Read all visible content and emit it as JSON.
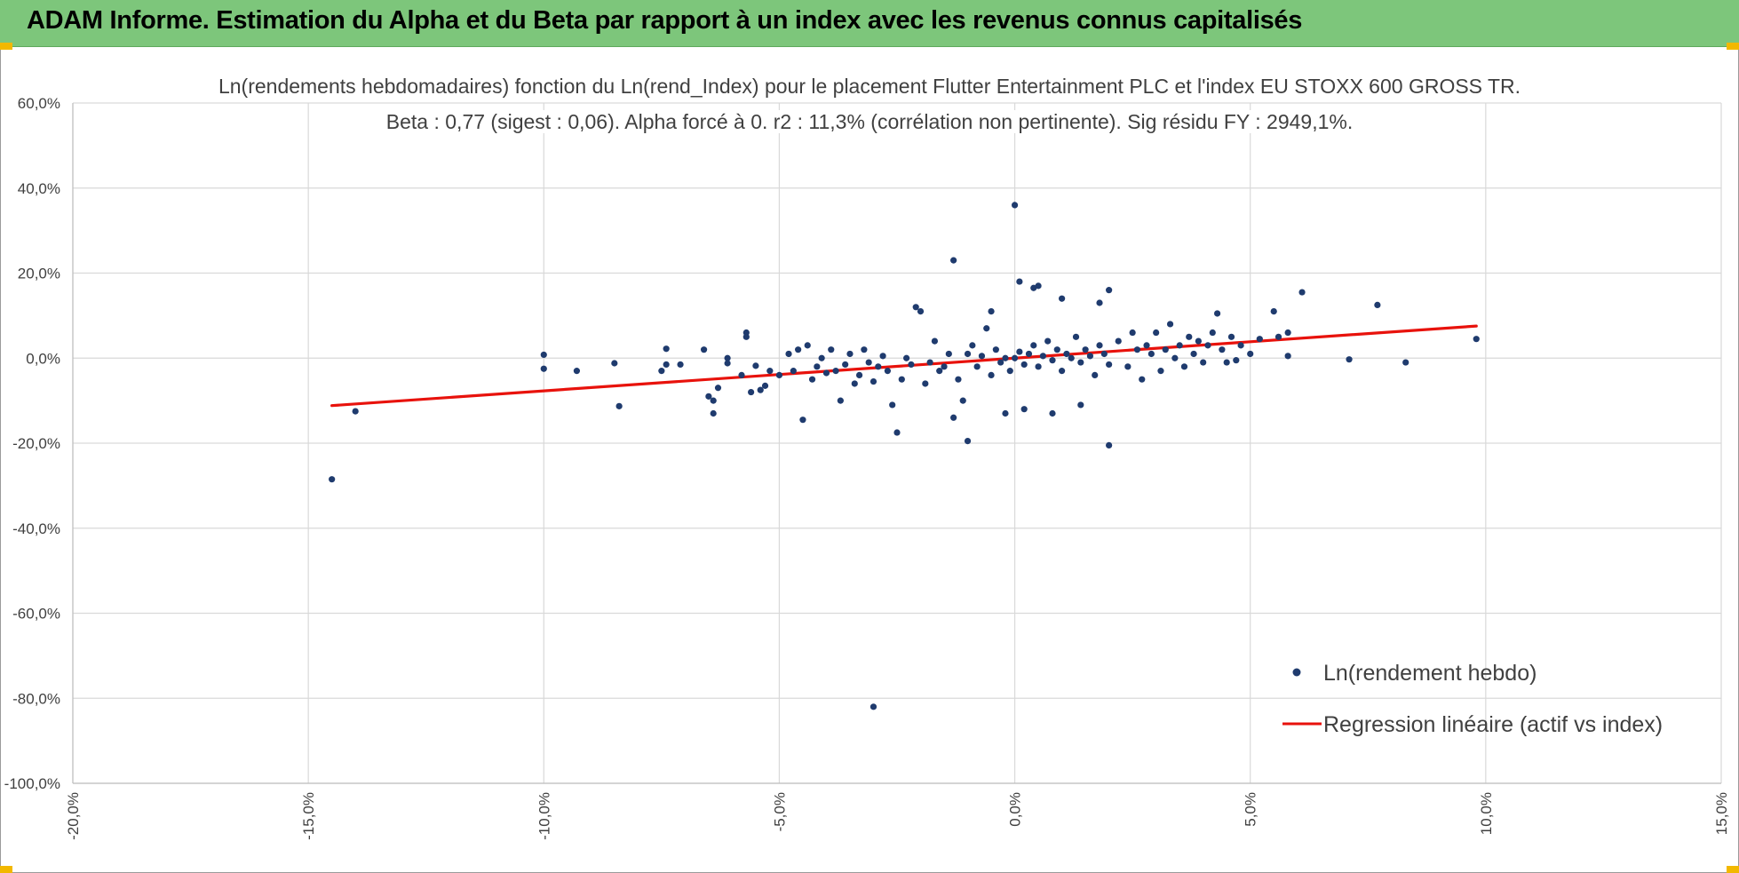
{
  "banner": {
    "title": "ADAM Informe. Estimation du Alpha et du Beta par rapport à un index avec les revenus connus capitalisés",
    "background": "#7dc67b"
  },
  "chart_data": {
    "type": "scatter",
    "title": "Ln(rendements hebdomadaires) fonction du Ln(rend_Index) pour le placement Flutter Entertainment PLC et l'index EU STOXX 600 GROSS TR.",
    "subtitle": "Beta : 0,77 (sigest : 0,06).  Alpha forcé à 0. r2 : 11,3% (corrélation non pertinente). Sig résidu FY : 2949,1%.",
    "xlabel": "",
    "ylabel": "",
    "xlim": [
      -0.2,
      0.15
    ],
    "ylim": [
      -1.0,
      0.6
    ],
    "x_ticks": [
      "-20,0%",
      "-15,0%",
      "-10,0%",
      "-5,0%",
      "0,0%",
      "5,0%",
      "10,0%",
      "15,0%"
    ],
    "y_ticks": [
      "60,0%",
      "40,0%",
      "20,0%",
      "0,0%",
      "-20,0%",
      "-40,0%",
      "-60,0%",
      "-80,0%",
      "-100,0%"
    ],
    "grid": true,
    "legend_position": "bottom-right",
    "series": [
      {
        "name": "Ln(rendement hebdo)",
        "kind": "scatter",
        "color": "#1f3b6e",
        "points": [
          [
            -0.145,
            -0.285
          ],
          [
            -0.14,
            -0.125
          ],
          [
            -0.1,
            0.008
          ],
          [
            -0.1,
            -0.025
          ],
          [
            -0.093,
            -0.03
          ],
          [
            -0.085,
            -0.012
          ],
          [
            -0.084,
            -0.113
          ],
          [
            -0.075,
            -0.03
          ],
          [
            -0.074,
            0.022
          ],
          [
            -0.074,
            -0.015
          ],
          [
            -0.071,
            -0.015
          ],
          [
            -0.066,
            0.02
          ],
          [
            -0.065,
            -0.09
          ],
          [
            -0.064,
            -0.1
          ],
          [
            -0.064,
            -0.13
          ],
          [
            -0.063,
            -0.07
          ],
          [
            -0.061,
            0.0
          ],
          [
            -0.061,
            -0.012
          ],
          [
            -0.058,
            -0.04
          ],
          [
            -0.057,
            0.06
          ],
          [
            -0.057,
            0.05
          ],
          [
            -0.056,
            -0.08
          ],
          [
            -0.055,
            -0.018
          ],
          [
            -0.054,
            -0.075
          ],
          [
            -0.053,
            -0.065
          ],
          [
            -0.052,
            -0.03
          ],
          [
            -0.05,
            -0.04
          ],
          [
            -0.048,
            0.01
          ],
          [
            -0.047,
            -0.03
          ],
          [
            -0.046,
            0.02
          ],
          [
            -0.045,
            -0.145
          ],
          [
            -0.044,
            0.03
          ],
          [
            -0.043,
            -0.05
          ],
          [
            -0.042,
            -0.02
          ],
          [
            -0.041,
            0.0
          ],
          [
            -0.04,
            -0.035
          ],
          [
            -0.039,
            0.02
          ],
          [
            -0.038,
            -0.03
          ],
          [
            -0.037,
            -0.1
          ],
          [
            -0.036,
            -0.015
          ],
          [
            -0.035,
            0.01
          ],
          [
            -0.034,
            -0.06
          ],
          [
            -0.033,
            -0.04
          ],
          [
            -0.032,
            0.02
          ],
          [
            -0.031,
            -0.01
          ],
          [
            -0.03,
            -0.055
          ],
          [
            -0.029,
            -0.02
          ],
          [
            -0.028,
            0.005
          ],
          [
            -0.027,
            -0.03
          ],
          [
            -0.026,
            -0.11
          ],
          [
            -0.025,
            -0.175
          ],
          [
            -0.024,
            -0.05
          ],
          [
            -0.023,
            0.0
          ],
          [
            -0.022,
            -0.015
          ],
          [
            -0.021,
            0.12
          ],
          [
            -0.02,
            0.11
          ],
          [
            -0.019,
            -0.06
          ],
          [
            -0.018,
            -0.01
          ],
          [
            -0.017,
            0.04
          ],
          [
            -0.016,
            -0.03
          ],
          [
            -0.015,
            -0.02
          ],
          [
            -0.014,
            0.01
          ],
          [
            -0.013,
            -0.14
          ],
          [
            -0.012,
            -0.05
          ],
          [
            -0.011,
            -0.1
          ],
          [
            -0.01,
            0.01
          ],
          [
            -0.009,
            0.03
          ],
          [
            -0.008,
            -0.02
          ],
          [
            -0.007,
            0.005
          ],
          [
            -0.006,
            0.07
          ],
          [
            -0.005,
            -0.04
          ],
          [
            -0.004,
            0.02
          ],
          [
            -0.003,
            -0.01
          ],
          [
            -0.002,
            0.0
          ],
          [
            -0.001,
            -0.03
          ],
          [
            0.0,
            0.0
          ],
          [
            0.001,
            0.015
          ],
          [
            0.002,
            -0.015
          ],
          [
            0.003,
            0.01
          ],
          [
            0.004,
            0.03
          ],
          [
            0.005,
            -0.02
          ],
          [
            0.006,
            0.005
          ],
          [
            0.007,
            0.04
          ],
          [
            0.008,
            -0.005
          ],
          [
            0.009,
            0.02
          ],
          [
            0.01,
            -0.03
          ],
          [
            0.011,
            0.01
          ],
          [
            0.012,
            0.0
          ],
          [
            0.013,
            0.05
          ],
          [
            0.014,
            -0.01
          ],
          [
            0.015,
            0.02
          ],
          [
            0.016,
            0.005
          ],
          [
            0.017,
            -0.04
          ],
          [
            0.018,
            0.03
          ],
          [
            0.019,
            0.01
          ],
          [
            0.02,
            -0.015
          ],
          [
            -0.03,
            -0.82
          ],
          [
            -0.013,
            0.23
          ],
          [
            -0.01,
            -0.195
          ],
          [
            0.0,
            0.36
          ],
          [
            0.001,
            0.18
          ],
          [
            0.004,
            0.165
          ],
          [
            0.005,
            0.17
          ],
          [
            0.02,
            -0.205
          ],
          [
            0.02,
            0.16
          ],
          [
            0.018,
            0.13
          ],
          [
            0.01,
            0.14
          ],
          [
            -0.005,
            0.11
          ],
          [
            -0.002,
            -0.13
          ],
          [
            0.002,
            -0.12
          ],
          [
            0.008,
            -0.13
          ],
          [
            0.014,
            -0.11
          ],
          [
            0.022,
            0.04
          ],
          [
            0.024,
            -0.02
          ],
          [
            0.025,
            0.06
          ],
          [
            0.026,
            0.02
          ],
          [
            0.027,
            -0.05
          ],
          [
            0.028,
            0.03
          ],
          [
            0.029,
            0.01
          ],
          [
            0.03,
            0.06
          ],
          [
            0.031,
            -0.03
          ],
          [
            0.032,
            0.02
          ],
          [
            0.033,
            0.08
          ],
          [
            0.034,
            0.0
          ],
          [
            0.035,
            0.03
          ],
          [
            0.036,
            -0.02
          ],
          [
            0.037,
            0.05
          ],
          [
            0.038,
            0.01
          ],
          [
            0.039,
            0.04
          ],
          [
            0.04,
            -0.01
          ],
          [
            0.041,
            0.03
          ],
          [
            0.042,
            0.06
          ],
          [
            0.043,
            0.105
          ],
          [
            0.044,
            0.02
          ],
          [
            0.045,
            -0.01
          ],
          [
            0.046,
            0.05
          ],
          [
            0.047,
            -0.005
          ],
          [
            0.048,
            0.03
          ],
          [
            0.05,
            0.01
          ],
          [
            0.052,
            0.045
          ],
          [
            0.055,
            0.11
          ],
          [
            0.056,
            0.05
          ],
          [
            0.058,
            0.06
          ],
          [
            0.058,
            0.005
          ],
          [
            0.061,
            0.155
          ],
          [
            0.071,
            -0.003
          ],
          [
            0.077,
            0.125
          ],
          [
            0.083,
            -0.01
          ],
          [
            0.098,
            0.045
          ]
        ]
      },
      {
        "name": "Regression linéaire (actif vs index)",
        "kind": "line",
        "color": "#e8120c",
        "slope": 0.77,
        "intercept": 0,
        "x_range": [
          -0.145,
          0.098
        ]
      }
    ]
  }
}
